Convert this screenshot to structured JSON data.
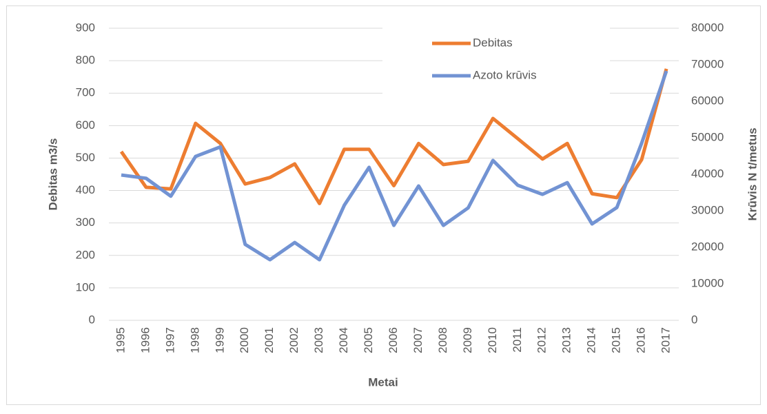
{
  "chart_data": {
    "type": "line",
    "x_label": "Metai",
    "y_label": "Debitas m3/s",
    "y2_label": "Krūvis N t/metus",
    "categories": [
      "1995",
      "1996",
      "1997",
      "1998",
      "1999",
      "2000",
      "2001",
      "2002",
      "2003",
      "2004",
      "2005",
      "2006",
      "2007",
      "2008",
      "2009",
      "2010",
      "2011",
      "2012",
      "2013",
      "2014",
      "2015",
      "2016",
      "2017"
    ],
    "series": [
      {
        "name": "Debitas",
        "color": "#ed7d31",
        "values": [
          520,
          410,
          405,
          607,
          545,
          420,
          440,
          482,
          360,
          527,
          527,
          415,
          545,
          480,
          490,
          622,
          560,
          497,
          545,
          390,
          378,
          495,
          775
        ]
      },
      {
        "name": "Azoto krūvis",
        "color": "#7293d3",
        "axis": "y2",
        "values": [
          39800,
          38900,
          34000,
          44900,
          47500,
          20800,
          16600,
          21300,
          16600,
          31500,
          41900,
          26000,
          36800,
          26000,
          30800,
          43800,
          37000,
          34500,
          37700,
          26400,
          30900,
          48500,
          68300
        ]
      }
    ],
    "ylim": [
      0,
      900
    ],
    "yticks": [
      0,
      100,
      200,
      300,
      400,
      500,
      600,
      700,
      800,
      900
    ],
    "y2lim": [
      0,
      80000
    ],
    "y2ticks": [
      0,
      10000,
      20000,
      30000,
      40000,
      50000,
      60000,
      70000,
      80000
    ],
    "grid": true,
    "legend": "top-right"
  }
}
